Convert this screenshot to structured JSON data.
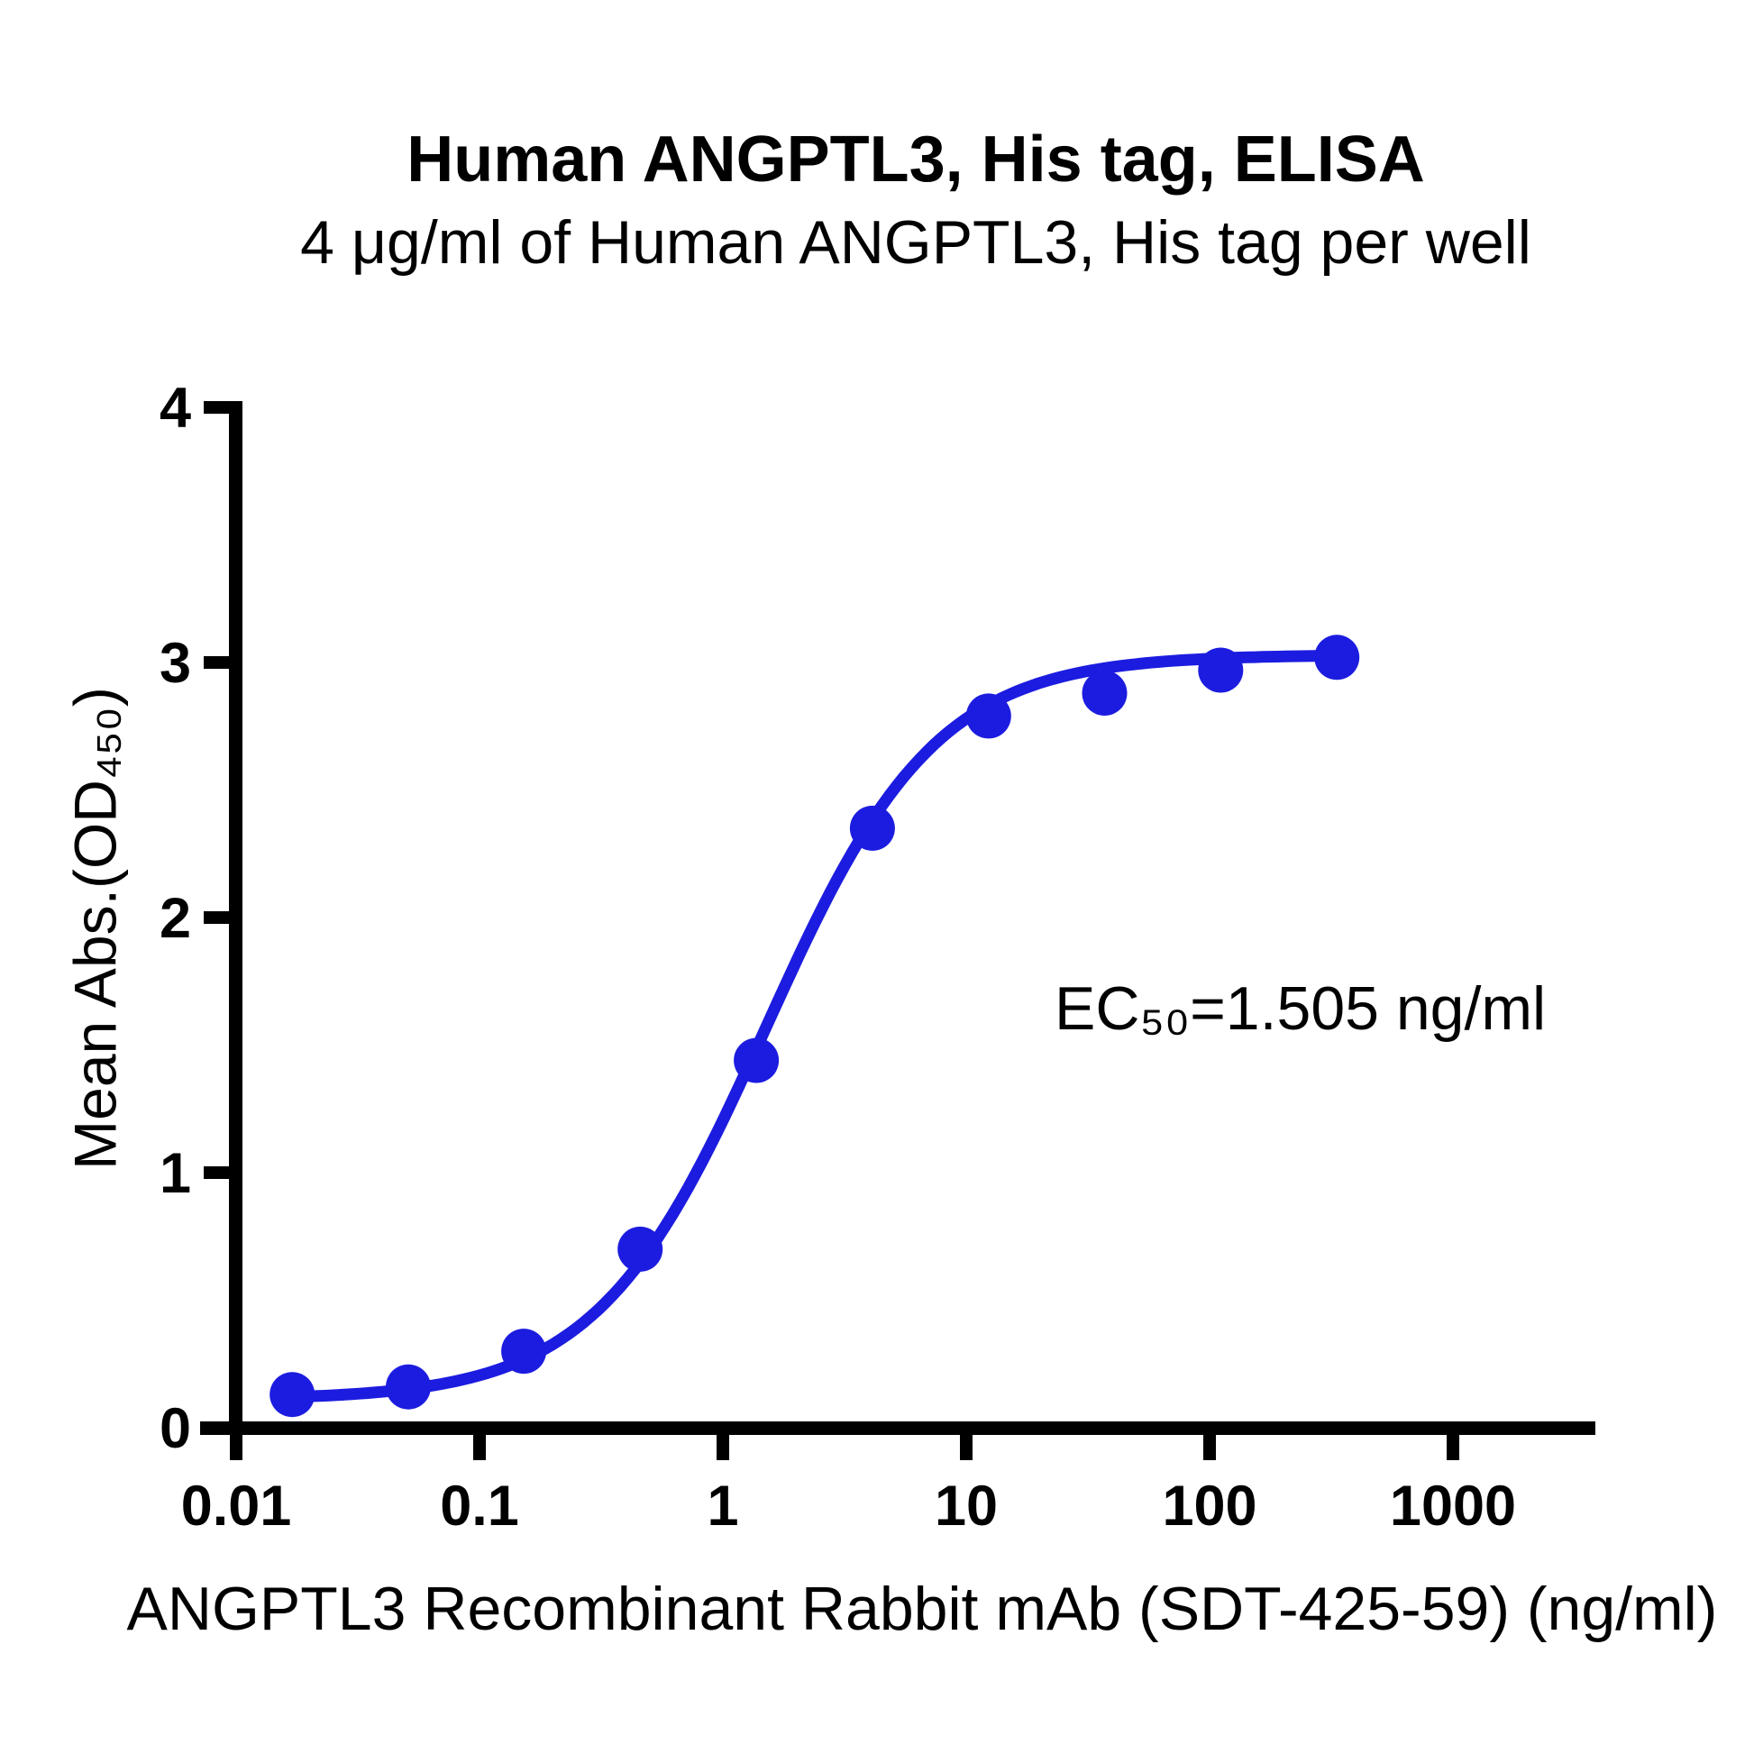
{
  "page": {
    "background_color": "#ffffff",
    "text_color": "#000000"
  },
  "chart_data": {
    "type": "scatter",
    "title": "Human ANGPTL3, His tag, ELISA",
    "subtitle": "4 μg/ml of Human ANGPTL3, His tag per well",
    "xlabel": "ANGPTL3 Recombinant Rabbit mAb (SDT-425-59) (ng/ml)",
    "ylabel": "Mean Abs.(OD₄₅₀)",
    "annotation": "EC₅₀=1.505 ng/ml",
    "ec50_ng_ml": 1.505,
    "x_scale": "log10",
    "xlim": [
      0.01,
      3800
    ],
    "ylim": [
      0,
      4
    ],
    "x_ticks": [
      0.01,
      0.1,
      1,
      10,
      100,
      1000
    ],
    "x_tick_labels": [
      "0.01",
      "0.1",
      "1",
      "10",
      "100",
      "1000"
    ],
    "y_ticks": [
      0,
      1,
      2,
      3,
      4
    ],
    "y_tick_labels": [
      "0",
      "1",
      "2",
      "3",
      "4"
    ],
    "grid": false,
    "legend": "none",
    "axis_color": "#000000",
    "series": [
      {
        "color": "#1c1ce0",
        "marker": "circle",
        "x": [
          0.017,
          0.051,
          0.152,
          0.457,
          1.372,
          4.115,
          12.35,
          37.04,
          111.1,
          333.3
        ],
        "y": [
          0.13,
          0.16,
          0.3,
          0.7,
          1.44,
          2.35,
          2.79,
          2.88,
          2.97,
          3.02
        ]
      }
    ],
    "fit_curve": {
      "model": "4PL",
      "bottom": 0.11,
      "top": 3.03,
      "ec50": 1.505,
      "hill": 1.25
    }
  }
}
